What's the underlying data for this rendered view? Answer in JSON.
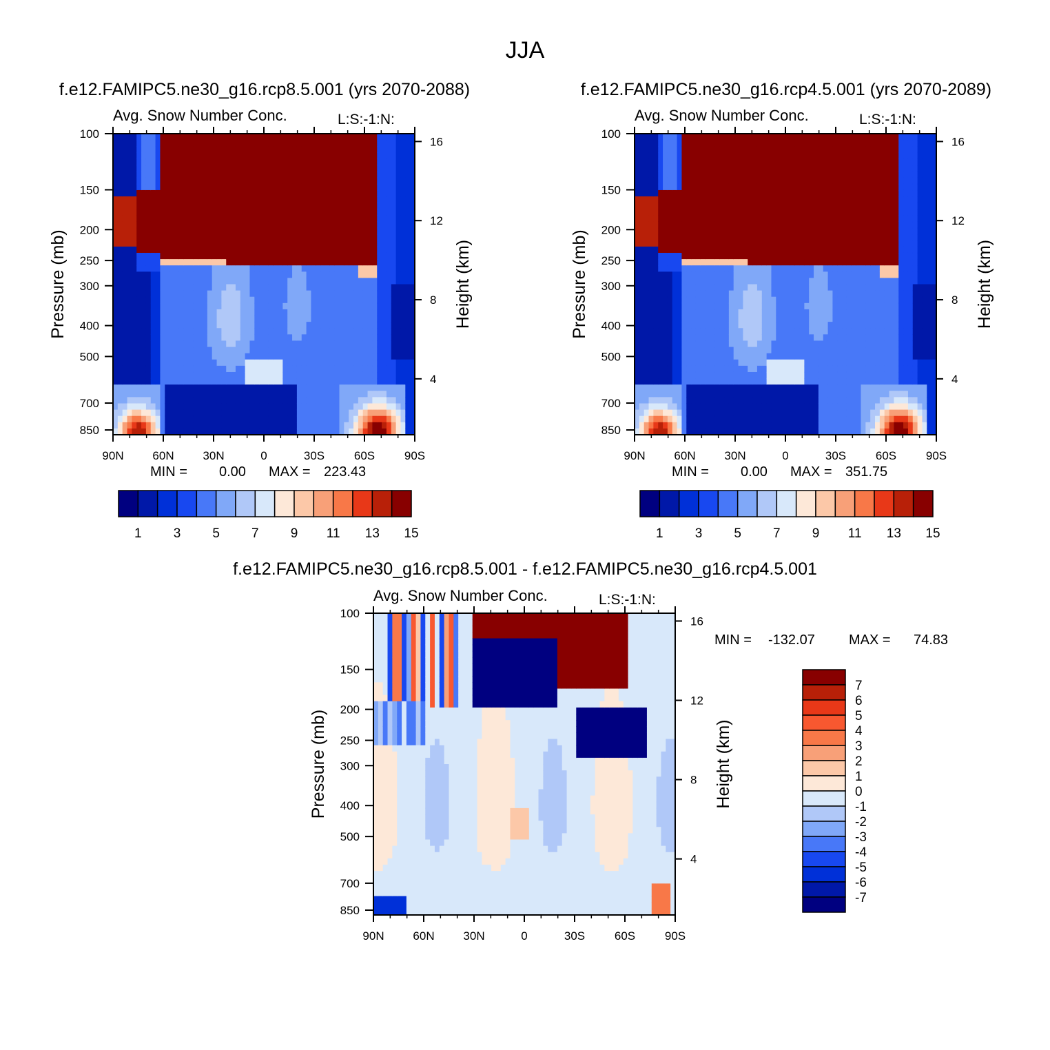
{
  "figure_title": "JJA",
  "colors": {
    "seq15": [
      "#000080",
      "#0018a8",
      "#0030d8",
      "#1848f0",
      "#4878f8",
      "#80a8f8",
      "#b0c8f8",
      "#d8e8fa",
      "#fde8d8",
      "#fcc8a8",
      "#f8a078",
      "#f87848",
      "#e83818",
      "#b82008",
      "#880000"
    ],
    "diff16": [
      "#000080",
      "#0018a8",
      "#0030d8",
      "#1848f0",
      "#4878f8",
      "#80a8f8",
      "#b0c8f8",
      "#d8e8fa",
      "#fde8d8",
      "#fcc8a8",
      "#f8a078",
      "#f87848",
      "#f85830",
      "#e83818",
      "#b82008",
      "#880000"
    ]
  },
  "chart_data": [
    {
      "type": "heatmap",
      "case_title": "f.e12.FAMIPC5.ne30_g16.rcp8.5.001 (yrs 2070-2088)",
      "variable": "Avg. Snow Number Conc.",
      "units": "L:S:-1:N:",
      "ylabel": "Pressure (mb)",
      "ylabel_right": "Height (km)",
      "xticks": [
        "90N",
        "60N",
        "30N",
        "0",
        "30S",
        "60S",
        "90S"
      ],
      "yticks": [
        "100",
        "150",
        "200",
        "250",
        "300",
        "400",
        "500",
        "700",
        "850"
      ],
      "yticks_right": [
        "16",
        "12",
        "8",
        "4"
      ],
      "stats": {
        "min_label": "MIN =",
        "min_value": "0.00",
        "max_label": "MAX =",
        "max_value": "223.43"
      },
      "colorbar_labels": [
        "1",
        "3",
        "5",
        "7",
        "9",
        "11",
        "13",
        "15"
      ],
      "variant": "a"
    },
    {
      "type": "heatmap",
      "case_title": "f.e12.FAMIPC5.ne30_g16.rcp4.5.001 (yrs 2070-2089)",
      "variable": "Avg. Snow Number Conc.",
      "units": "L:S:-1:N:",
      "ylabel": "Pressure (mb)",
      "ylabel_right": "Height (km)",
      "xticks": [
        "90N",
        "60N",
        "30N",
        "0",
        "30S",
        "60S",
        "90S"
      ],
      "yticks": [
        "100",
        "150",
        "200",
        "250",
        "300",
        "400",
        "500",
        "700",
        "850"
      ],
      "yticks_right": [
        "16",
        "12",
        "8",
        "4"
      ],
      "stats": {
        "min_label": "MIN =",
        "min_value": "0.00",
        "max_label": "MAX =",
        "max_value": "351.75"
      },
      "colorbar_labels": [
        "1",
        "3",
        "5",
        "7",
        "9",
        "11",
        "13",
        "15"
      ],
      "variant": "b"
    },
    {
      "type": "heatmap",
      "case_title": "f.e12.FAMIPC5.ne30_g16.rcp8.5.001 - f.e12.FAMIPC5.ne30_g16.rcp4.5.001",
      "variable": "Avg. Snow Number Conc.",
      "units": "L:S:-1:N:",
      "ylabel": "Pressure (mb)",
      "ylabel_right": "Height (km)",
      "xticks": [
        "90N",
        "60N",
        "30N",
        "0",
        "30S",
        "60S",
        "90S"
      ],
      "yticks": [
        "100",
        "150",
        "200",
        "250",
        "300",
        "400",
        "500",
        "700",
        "850"
      ],
      "yticks_right": [
        "16",
        "12",
        "8",
        "4"
      ],
      "stats": {
        "min_label": "MIN =",
        "min_value": "-132.07",
        "max_label": "MAX =",
        "max_value": "74.83"
      },
      "colorbar_labels": [
        "7",
        "6",
        "5",
        "4",
        "3",
        "2",
        "1",
        "0",
        "-1",
        "-2",
        "-3",
        "-4",
        "-5",
        "-6",
        "-7"
      ],
      "variant": "diff"
    }
  ]
}
